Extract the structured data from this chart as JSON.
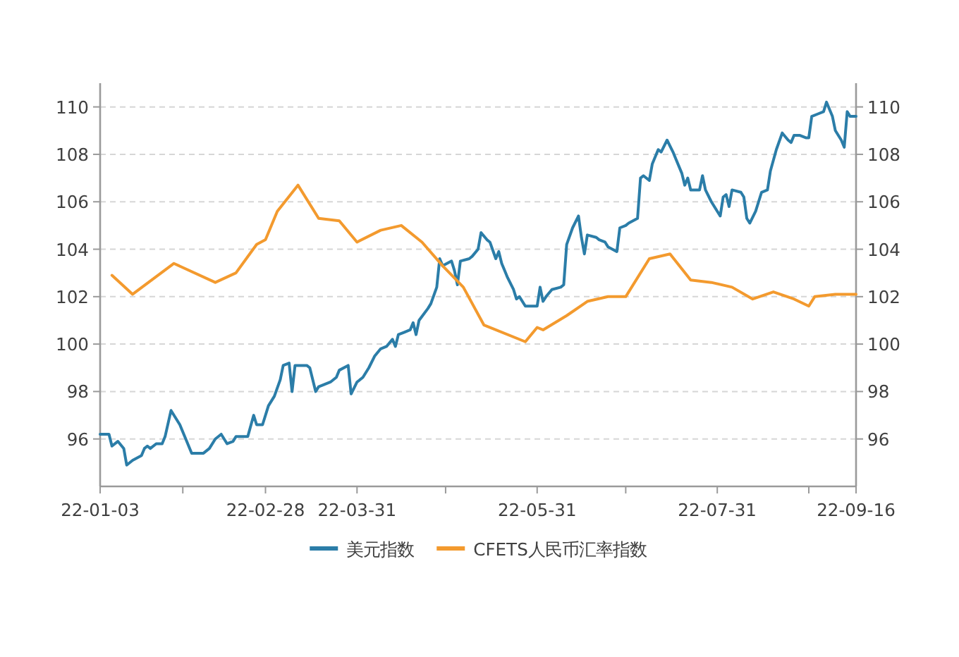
{
  "chart_data": {
    "type": "line",
    "xlim": [
      "--01-03",
      "--09-16"
    ],
    "xticks": [
      {
        "value": "--01-03",
        "label": "22-01-03"
      },
      {
        "value": "--01-31",
        "label": null
      },
      {
        "value": "--02-28",
        "label": "22-02-28"
      },
      {
        "value": "--03-31",
        "label": "22-03-31"
      },
      {
        "value": "--04-30",
        "label": null
      },
      {
        "value": "--05-31",
        "label": "22-05-31"
      },
      {
        "value": "--06-30",
        "label": null
      },
      {
        "value": "--07-31",
        "label": "22-07-31"
      },
      {
        "value": "--08-31",
        "label": null
      },
      {
        "value": "--09-16",
        "label": "22-09-16"
      }
    ],
    "ylim": [
      94,
      111
    ],
    "yticks": [
      96,
      98,
      100,
      102,
      104,
      106,
      108,
      110
    ],
    "y2lim": [
      94,
      111
    ],
    "y2ticks": [
      96,
      98,
      100,
      102,
      104,
      106,
      108,
      110
    ],
    "grid": "y",
    "legend": "bottom",
    "series": [
      {
        "name": "美元指数",
        "color": "#2b7da8",
        "x": [
          "--01-03",
          "--01-06",
          "--01-07",
          "--01-09",
          "--01-11",
          "--01-12",
          "--01-14",
          "--01-17",
          "--01-18",
          "--01-19",
          "--01-20",
          "--01-22",
          "--01-24",
          "--01-25",
          "--01-27",
          "--01-28",
          "--01-30",
          "--02-01",
          "--02-03",
          "--02-05",
          "--02-07",
          "--02-09",
          "--02-11",
          "--02-13",
          "--02-15",
          "--02-17",
          "--02-18",
          "--02-21",
          "--02-22",
          "--02-24",
          "--02-25",
          "--02-27",
          "--03-01",
          "--03-03",
          "--03-05",
          "--03-06",
          "--03-08",
          "--03-09",
          "--03-10",
          "--03-14",
          "--03-15",
          "--03-17",
          "--03-18",
          "--03-22",
          "--03-24",
          "--03-25",
          "--03-28",
          "--03-29",
          "--03-31",
          "--04-02",
          "--04-04",
          "--04-06",
          "--04-08",
          "--04-10",
          "--04-12",
          "--04-13",
          "--04-14",
          "--04-16",
          "--04-18",
          "--04-19",
          "--04-20",
          "--04-21",
          "--04-24",
          "--04-25",
          "--04-27",
          "--04-28",
          "--04-29",
          "--05-02",
          "--05-03",
          "--05-04",
          "--05-05",
          "--05-08",
          "--05-09",
          "--05-11",
          "--05-12",
          "--05-14",
          "--05-15",
          "--05-17",
          "--05-18",
          "--05-19",
          "--05-20",
          "--05-21",
          "--05-23",
          "--05-24",
          "--05-25",
          "--05-27",
          "--05-29",
          "--05-31",
          "--06-01",
          "--06-02",
          "--06-03",
          "--06-05",
          "--06-08",
          "--06-09",
          "--06-10",
          "--06-12",
          "--06-14",
          "--06-15",
          "--06-16",
          "--06-17",
          "--06-20",
          "--06-21",
          "--06-23",
          "--06-24",
          "--06-27",
          "--06-28",
          "--06-30",
          "--07-01",
          "--07-04",
          "--07-05",
          "--07-06",
          "--07-08",
          "--07-09",
          "--07-11",
          "--07-12",
          "--07-14",
          "--07-16",
          "--07-17",
          "--07-19",
          "--07-20",
          "--07-21",
          "--07-22",
          "--07-24",
          "--07-25",
          "--07-26",
          "--07-27",
          "--07-29",
          "--07-31",
          "--08-01",
          "--08-02",
          "--08-03",
          "--08-04",
          "--08-05",
          "--08-08",
          "--08-09",
          "--08-10",
          "--08-11",
          "--08-13",
          "--08-15",
          "--08-17",
          "--08-18",
          "--08-20",
          "--08-22",
          "--08-24",
          "--08-25",
          "--08-26",
          "--08-28",
          "--08-30",
          "--08-31",
          "--09-01",
          "--09-03",
          "--09-05",
          "--09-06",
          "--09-08",
          "--09-09",
          "--09-11",
          "--09-12",
          "--09-13",
          "--09-14",
          "--09-16"
        ],
        "values": [
          96.2,
          96.2,
          95.7,
          95.9,
          95.6,
          94.9,
          95.1,
          95.3,
          95.6,
          95.7,
          95.6,
          95.8,
          95.8,
          96.1,
          97.2,
          97.0,
          96.6,
          96.0,
          95.4,
          95.4,
          95.4,
          95.6,
          96.0,
          96.2,
          95.8,
          95.9,
          96.1,
          96.1,
          96.1,
          97.0,
          96.6,
          96.6,
          97.4,
          97.8,
          98.5,
          99.1,
          99.2,
          98.0,
          99.1,
          99.1,
          99.0,
          98.0,
          98.2,
          98.4,
          98.6,
          98.9,
          99.1,
          97.9,
          98.4,
          98.6,
          99.0,
          99.5,
          99.8,
          99.9,
          100.2,
          99.9,
          100.4,
          100.5,
          100.6,
          100.9,
          100.4,
          101.0,
          101.5,
          101.7,
          102.4,
          103.6,
          103.3,
          103.5,
          103.1,
          102.5,
          103.5,
          103.6,
          103.7,
          104.0,
          104.7,
          104.4,
          104.3,
          103.6,
          103.9,
          103.4,
          103.1,
          102.8,
          102.3,
          101.9,
          102.0,
          101.6,
          101.6,
          101.6,
          102.4,
          101.8,
          102.0,
          102.3,
          102.4,
          102.5,
          104.2,
          104.9,
          105.4,
          104.5,
          103.8,
          104.6,
          104.5,
          104.4,
          104.3,
          104.1,
          103.9,
          104.9,
          105.0,
          105.1,
          105.3,
          107.0,
          107.1,
          106.9,
          107.6,
          108.2,
          108.1,
          108.6,
          108.1,
          107.8,
          107.2,
          106.7,
          107.0,
          106.5,
          106.5,
          106.5,
          107.1,
          106.5,
          106.0,
          105.6,
          105.4,
          106.2,
          106.3,
          105.8,
          106.5,
          106.4,
          106.2,
          105.3,
          105.1,
          105.6,
          106.4,
          106.5,
          107.3,
          108.2,
          108.9,
          108.6,
          108.5,
          108.8,
          108.8,
          108.7,
          108.7,
          109.6,
          109.7,
          109.8,
          110.2,
          109.6,
          109.0,
          108.6,
          108.3,
          109.8,
          109.6,
          109.6
        ]
      },
      {
        "name": "CFETS人民币汇率指数",
        "color": "#f39a2e",
        "x": [
          "--01-07",
          "--01-14",
          "--01-28",
          "--02-11",
          "--02-18",
          "--02-25",
          "--02-28",
          "--03-04",
          "--03-11",
          "--03-18",
          "--03-25",
          "--03-31",
          "--04-08",
          "--04-15",
          "--04-22",
          "--04-29",
          "--05-06",
          "--05-13",
          "--05-27",
          "--05-31",
          "--06-02",
          "--06-10",
          "--06-17",
          "--06-24",
          "--06-30",
          "--07-08",
          "--07-15",
          "--07-22",
          "--07-29",
          "--08-05",
          "--08-12",
          "--08-19",
          "--08-26",
          "--08-31",
          "--09-02",
          "--09-09",
          "--09-16"
        ],
        "values": [
          102.9,
          102.1,
          103.4,
          102.6,
          103.0,
          104.2,
          104.4,
          105.6,
          106.7,
          105.3,
          105.2,
          104.3,
          104.8,
          105.0,
          104.3,
          103.3,
          102.4,
          100.8,
          100.1,
          100.7,
          100.6,
          101.2,
          101.8,
          102.0,
          102.0,
          103.6,
          103.8,
          102.7,
          102.6,
          102.4,
          101.9,
          102.2,
          101.9,
          101.6,
          102.0,
          102.1,
          102.1
        ]
      }
    ]
  }
}
